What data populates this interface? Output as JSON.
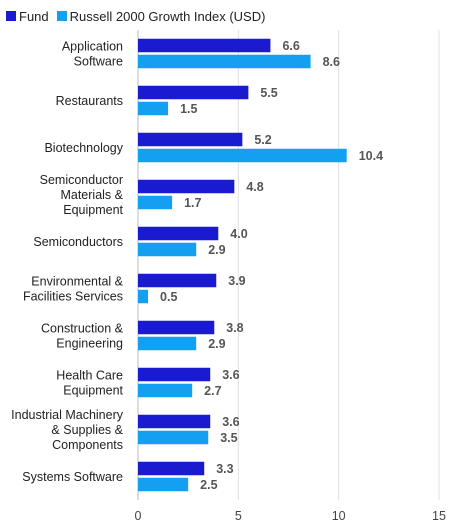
{
  "chart_data": {
    "type": "bar",
    "orientation": "horizontal",
    "categories": [
      [
        "Application",
        "Software"
      ],
      [
        "Restaurants"
      ],
      [
        "Biotechnology"
      ],
      [
        "Semiconductor",
        "Materials &",
        "Equipment"
      ],
      [
        "Semiconductors"
      ],
      [
        "Environmental &",
        "Facilities Services"
      ],
      [
        "Construction &",
        "Engineering"
      ],
      [
        "Health Care",
        "Equipment"
      ],
      [
        "Industrial Machinery",
        "& Supplies &",
        "Components"
      ],
      [
        "Systems Software"
      ]
    ],
    "series": [
      {
        "name": "Fund",
        "color": "#1a1ad0",
        "values": [
          6.6,
          5.5,
          5.2,
          4.8,
          4.0,
          3.9,
          3.8,
          3.6,
          3.6,
          3.3
        ],
        "labels": [
          "6.6",
          "5.5",
          "5.2",
          "4.8",
          "4.0",
          "3.9",
          "3.8",
          "3.6",
          "3.6",
          "3.3"
        ]
      },
      {
        "name": "Russell 2000 Growth Index (USD)",
        "color": "#14a0f0",
        "values": [
          8.6,
          1.5,
          10.4,
          1.7,
          2.9,
          0.5,
          2.9,
          2.7,
          3.5,
          2.5
        ],
        "labels": [
          "8.6",
          "1.5",
          "10.4",
          "1.7",
          "2.9",
          "0.5",
          "2.9",
          "2.7",
          "3.5",
          "2.5"
        ]
      }
    ],
    "xlim": [
      0,
      15
    ],
    "xticks": [
      0,
      5,
      10,
      15
    ],
    "xtick_labels": [
      "0",
      "5",
      "10",
      "15"
    ],
    "grid": "vertical",
    "legend": "top-left",
    "title": "",
    "xlabel": "",
    "ylabel": ""
  }
}
